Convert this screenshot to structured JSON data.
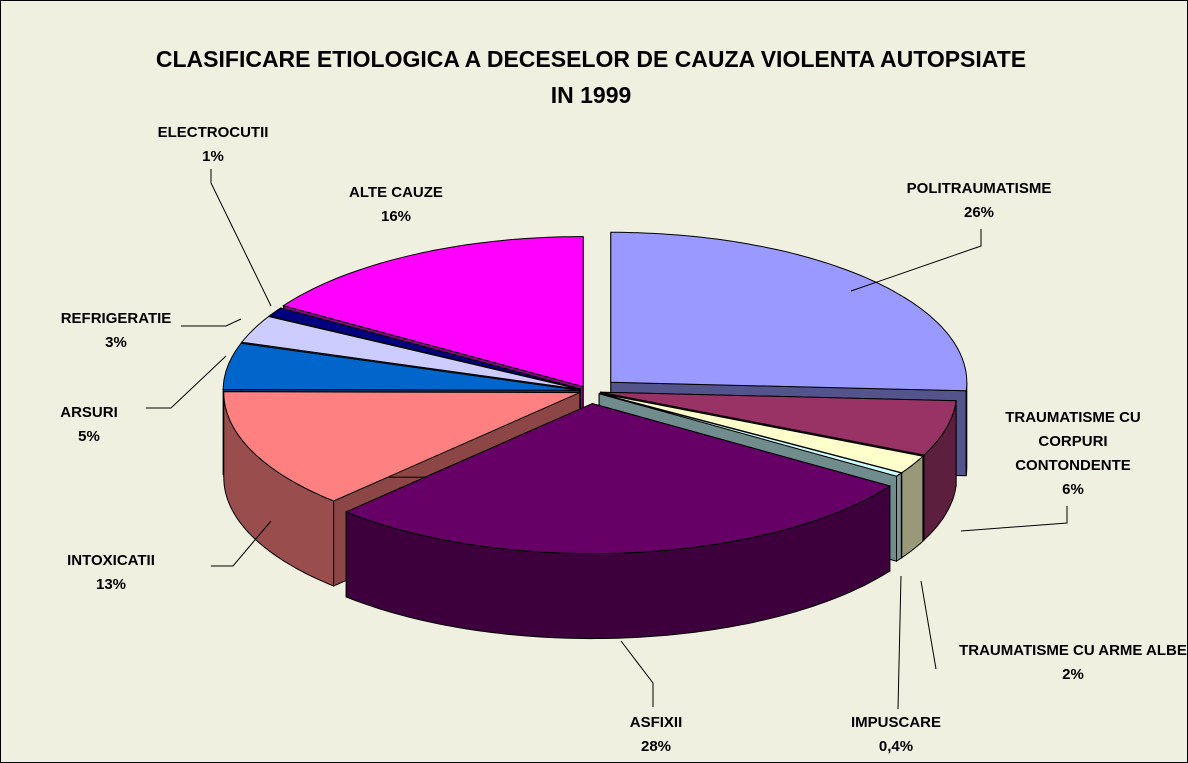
{
  "chart_data": {
    "type": "pie",
    "title": "CLASIFICARE ETIOLOGICA A DECESELOR DE CAUZA VIOLENTA AUTOPSIATE IN 1999",
    "categories": [
      "POLITRAUMATISME",
      "TRAUMATISME CU CORPURI CONTONDENTE",
      "TRAUMATISME CU ARME ALBE",
      "IMPUSCARE",
      "ASFIXII",
      "INTOXICATII",
      "ARSURI",
      "REFRIGERATIE",
      "ELECTROCUTII",
      "ALTE CAUZE"
    ],
    "values": [
      26,
      6,
      2,
      0.4,
      28,
      13,
      5,
      3,
      1,
      16
    ],
    "value_labels": [
      "26%",
      "6%",
      "2%",
      "0,4%",
      "28%",
      "13%",
      "5%",
      "3%",
      "1%",
      "16%"
    ],
    "colors": [
      "#9999ff",
      "#993366",
      "#ffffcc",
      "#ccffff",
      "#660066",
      "#ff8080",
      "#0066cc",
      "#ccccff",
      "#000080",
      "#ff00ff"
    ]
  }
}
